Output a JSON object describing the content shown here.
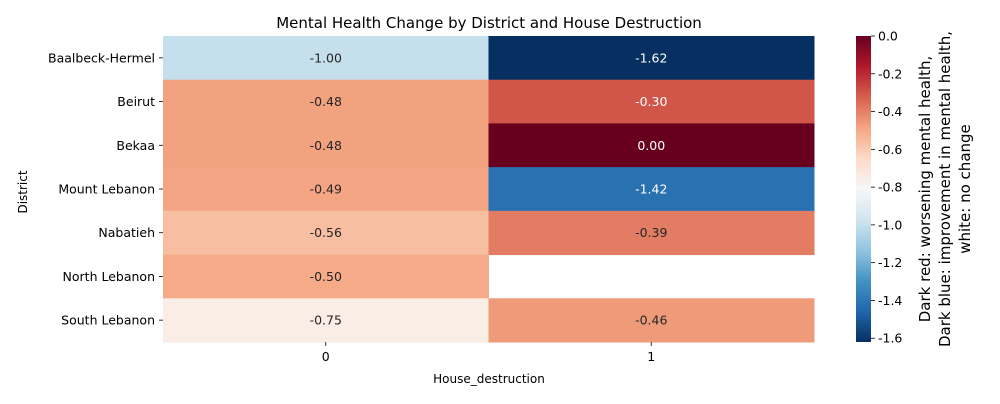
{
  "chart_data": {
    "type": "heatmap",
    "title": "Mental Health Change by District and House Destruction",
    "xlabel": "House_destruction",
    "ylabel": "District",
    "x_categories": [
      "0",
      "1"
    ],
    "y_categories": [
      "Baalbeck-Hermel",
      "Beirut",
      "Bekaa",
      "Mount Lebanon",
      "Nabatieh",
      "North Lebanon",
      "South Lebanon"
    ],
    "values": [
      [
        -1.0,
        -1.62
      ],
      [
        -0.48,
        -0.3
      ],
      [
        -0.48,
        0.0
      ],
      [
        -0.49,
        -1.42
      ],
      [
        -0.56,
        -0.39
      ],
      [
        -0.5,
        null
      ],
      [
        -0.75,
        -0.46
      ]
    ],
    "cell_labels": [
      [
        "-1.00",
        "-1.62"
      ],
      [
        "-0.48",
        "-0.30"
      ],
      [
        "-0.48",
        "0.00"
      ],
      [
        "-0.49",
        "-1.42"
      ],
      [
        "-0.56",
        "-0.39"
      ],
      [
        "-0.50",
        ""
      ],
      [
        "-0.75",
        "-0.46"
      ]
    ],
    "colormap": "RdBu_r",
    "colorbar": {
      "range": [
        -1.62,
        0.0
      ],
      "ticks": [
        "0.0",
        "-0.2",
        "-0.4",
        "-0.6",
        "-0.8",
        "-1.0",
        "-1.2",
        "-1.4",
        "-1.6"
      ],
      "label_lines": [
        "Dark red: worsening mental health,",
        "Dark blue: improvement in mental health,",
        "white: no change"
      ]
    },
    "colors": {
      "dark_red": "#67001f",
      "dark_blue": "#053061",
      "white": "#f7f7f7"
    }
  }
}
